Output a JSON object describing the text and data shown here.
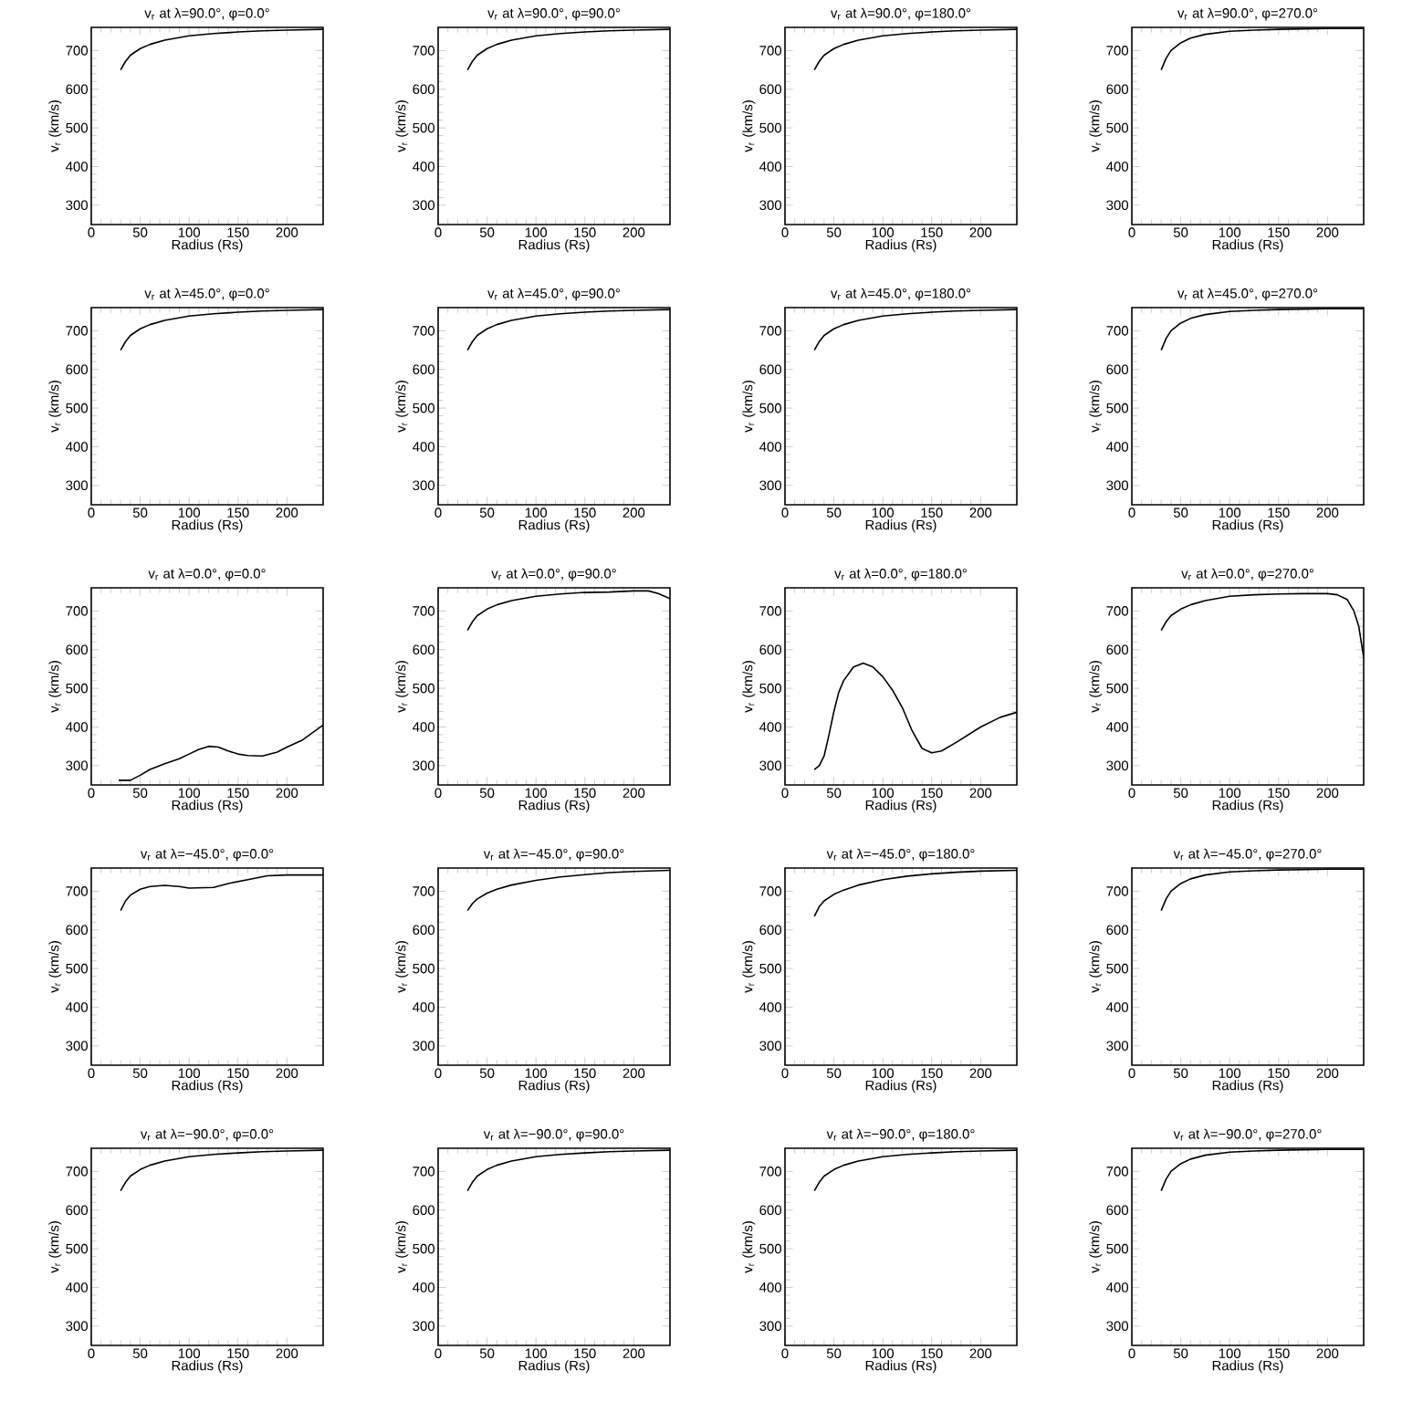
{
  "chart_data": [
    {
      "type": "line",
      "title": "v$_{r}$ at λ=90.0°, φ=0.0°",
      "xlabel": "Radius (Rs)",
      "ylabel": "v$_{r}$ (km/s)",
      "xlim": [
        0,
        237
      ],
      "ylim": [
        250,
        760
      ],
      "xticks": [
        0,
        50,
        100,
        150,
        200
      ],
      "yticks": [
        300,
        400,
        500,
        600,
        700
      ],
      "color": "#000000",
      "x": [
        30,
        35,
        40,
        50,
        60,
        75,
        100,
        125,
        150,
        175,
        200,
        237
      ],
      "values": [
        650,
        672,
        688,
        705,
        716,
        727,
        738,
        744,
        748,
        751,
        753,
        755
      ]
    },
    {
      "type": "line",
      "title": "v$_{r}$ at λ=90.0°, φ=90.0°",
      "xlabel": "Radius (Rs)",
      "ylabel": "v$_{r}$ (km/s)",
      "xlim": [
        0,
        237
      ],
      "ylim": [
        250,
        760
      ],
      "xticks": [
        0,
        50,
        100,
        150,
        200
      ],
      "yticks": [
        300,
        400,
        500,
        600,
        700
      ],
      "color": "#000000",
      "x": [
        30,
        35,
        40,
        50,
        60,
        75,
        100,
        125,
        150,
        175,
        200,
        237
      ],
      "values": [
        650,
        672,
        688,
        705,
        716,
        727,
        738,
        744,
        748,
        751,
        753,
        755
      ]
    },
    {
      "type": "line",
      "title": "v$_{r}$ at λ=90.0°, φ=180.0°",
      "xlabel": "Radius (Rs)",
      "ylabel": "v$_{r}$ (km/s)",
      "xlim": [
        0,
        237
      ],
      "ylim": [
        250,
        760
      ],
      "xticks": [
        0,
        50,
        100,
        150,
        200
      ],
      "yticks": [
        300,
        400,
        500,
        600,
        700
      ],
      "color": "#000000",
      "x": [
        30,
        35,
        40,
        50,
        60,
        75,
        100,
        125,
        150,
        175,
        200,
        237
      ],
      "values": [
        650,
        672,
        688,
        705,
        716,
        727,
        738,
        744,
        748,
        751,
        753,
        755
      ]
    },
    {
      "type": "line",
      "title": "v$_{r}$ at λ=90.0°, φ=270.0°",
      "xlabel": "Radius (Rs)",
      "ylabel": "v$_{r}$ (km/s)",
      "xlim": [
        0,
        237
      ],
      "ylim": [
        250,
        760
      ],
      "xticks": [
        0,
        50,
        100,
        150,
        200
      ],
      "yticks": [
        300,
        400,
        500,
        600,
        700
      ],
      "color": "#000000",
      "x": [
        30,
        35,
        40,
        50,
        60,
        75,
        100,
        125,
        150,
        175,
        200,
        237
      ],
      "values": [
        650,
        680,
        700,
        720,
        732,
        742,
        750,
        753,
        755,
        756,
        757,
        757
      ]
    },
    {
      "type": "line",
      "title": "v$_{r}$ at λ=45.0°, φ=0.0°",
      "xlabel": "Radius (Rs)",
      "ylabel": "v$_{r}$ (km/s)",
      "xlim": [
        0,
        237
      ],
      "ylim": [
        250,
        760
      ],
      "xticks": [
        0,
        50,
        100,
        150,
        200
      ],
      "yticks": [
        300,
        400,
        500,
        600,
        700
      ],
      "color": "#000000",
      "x": [
        30,
        35,
        40,
        50,
        60,
        75,
        100,
        125,
        150,
        175,
        200,
        237
      ],
      "values": [
        650,
        672,
        688,
        705,
        716,
        727,
        738,
        744,
        748,
        751,
        753,
        755
      ]
    },
    {
      "type": "line",
      "title": "v$_{r}$ at λ=45.0°, φ=90.0°",
      "xlabel": "Radius (Rs)",
      "ylabel": "v$_{r}$ (km/s)",
      "xlim": [
        0,
        237
      ],
      "ylim": [
        250,
        760
      ],
      "xticks": [
        0,
        50,
        100,
        150,
        200
      ],
      "yticks": [
        300,
        400,
        500,
        600,
        700
      ],
      "color": "#000000",
      "x": [
        30,
        35,
        40,
        50,
        60,
        75,
        100,
        125,
        150,
        175,
        200,
        237
      ],
      "values": [
        650,
        672,
        688,
        705,
        716,
        727,
        738,
        744,
        748,
        751,
        753,
        755
      ]
    },
    {
      "type": "line",
      "title": "v$_{r}$ at λ=45.0°, φ=180.0°",
      "xlabel": "Radius (Rs)",
      "ylabel": "v$_{r}$ (km/s)",
      "xlim": [
        0,
        237
      ],
      "ylim": [
        250,
        760
      ],
      "xticks": [
        0,
        50,
        100,
        150,
        200
      ],
      "yticks": [
        300,
        400,
        500,
        600,
        700
      ],
      "color": "#000000",
      "x": [
        30,
        35,
        40,
        50,
        60,
        75,
        100,
        125,
        150,
        175,
        200,
        237
      ],
      "values": [
        650,
        672,
        688,
        705,
        716,
        727,
        738,
        744,
        748,
        751,
        753,
        755
      ]
    },
    {
      "type": "line",
      "title": "v$_{r}$ at λ=45.0°, φ=270.0°",
      "xlabel": "Radius (Rs)",
      "ylabel": "v$_{r}$ (km/s)",
      "xlim": [
        0,
        237
      ],
      "ylim": [
        250,
        760
      ],
      "xticks": [
        0,
        50,
        100,
        150,
        200
      ],
      "yticks": [
        300,
        400,
        500,
        600,
        700
      ],
      "color": "#000000",
      "x": [
        30,
        35,
        40,
        50,
        60,
        75,
        100,
        125,
        150,
        175,
        200,
        237
      ],
      "values": [
        650,
        680,
        700,
        720,
        732,
        742,
        750,
        753,
        755,
        756,
        757,
        757
      ]
    },
    {
      "type": "line",
      "title": "v$_{r}$ at λ=0.0°, φ=0.0°",
      "xlabel": "Radius (Rs)",
      "ylabel": "v$_{r}$ (km/s)",
      "xlim": [
        0,
        237
      ],
      "ylim": [
        250,
        760
      ],
      "xticks": [
        0,
        50,
        100,
        150,
        200
      ],
      "yticks": [
        300,
        400,
        500,
        600,
        700
      ],
      "color": "#000000",
      "x": [
        28,
        40,
        50,
        60,
        75,
        90,
        100,
        110,
        120,
        130,
        140,
        150,
        160,
        175,
        190,
        200,
        215,
        237
      ],
      "values": [
        262,
        262,
        275,
        290,
        305,
        318,
        330,
        342,
        350,
        348,
        338,
        330,
        326,
        325,
        335,
        348,
        365,
        405
      ]
    },
    {
      "type": "line",
      "title": "v$_{r}$ at λ=0.0°, φ=90.0°",
      "xlabel": "Radius (Rs)",
      "ylabel": "v$_{r}$ (km/s)",
      "xlim": [
        0,
        237
      ],
      "ylim": [
        250,
        760
      ],
      "xticks": [
        0,
        50,
        100,
        150,
        200
      ],
      "yticks": [
        300,
        400,
        500,
        600,
        700
      ],
      "color": "#000000",
      "x": [
        30,
        35,
        40,
        50,
        60,
        75,
        100,
        125,
        150,
        175,
        200,
        215,
        225,
        237
      ],
      "values": [
        650,
        672,
        688,
        705,
        716,
        727,
        738,
        744,
        748,
        749,
        752,
        752,
        745,
        732
      ]
    },
    {
      "type": "line",
      "title": "v$_{r}$ at λ=0.0°, φ=180.0°",
      "xlabel": "Radius (Rs)",
      "ylabel": "v$_{r}$ (km/s)",
      "xlim": [
        0,
        237
      ],
      "ylim": [
        250,
        760
      ],
      "xticks": [
        0,
        50,
        100,
        150,
        200
      ],
      "yticks": [
        300,
        400,
        500,
        600,
        700
      ],
      "color": "#000000",
      "x": [
        30,
        35,
        40,
        45,
        50,
        55,
        60,
        70,
        80,
        90,
        100,
        110,
        120,
        130,
        140,
        150,
        160,
        175,
        200,
        220,
        237
      ],
      "values": [
        290,
        300,
        325,
        380,
        440,
        490,
        520,
        555,
        565,
        555,
        530,
        495,
        450,
        390,
        345,
        333,
        338,
        360,
        400,
        425,
        438
      ]
    },
    {
      "type": "line",
      "title": "v$_{r}$ at λ=0.0°, φ=270.0°",
      "xlabel": "Radius (Rs)",
      "ylabel": "v$_{r}$ (km/s)",
      "xlim": [
        0,
        237
      ],
      "ylim": [
        250,
        760
      ],
      "xticks": [
        0,
        50,
        100,
        150,
        200
      ],
      "yticks": [
        300,
        400,
        500,
        600,
        700
      ],
      "color": "#000000",
      "x": [
        30,
        35,
        40,
        50,
        60,
        75,
        100,
        125,
        150,
        175,
        200,
        210,
        220,
        227,
        232,
        237
      ],
      "values": [
        650,
        672,
        688,
        705,
        716,
        727,
        738,
        742,
        744,
        745,
        745,
        742,
        730,
        700,
        660,
        580
      ]
    },
    {
      "type": "line",
      "title": "v$_{r}$ at λ=−45.0°, φ=0.0°",
      "xlabel": "Radius (Rs)",
      "ylabel": "v$_{r}$ (km/s)",
      "xlim": [
        0,
        237
      ],
      "ylim": [
        250,
        760
      ],
      "xticks": [
        0,
        50,
        100,
        150,
        200
      ],
      "yticks": [
        300,
        400,
        500,
        600,
        700
      ],
      "color": "#000000",
      "x": [
        30,
        35,
        40,
        50,
        60,
        75,
        90,
        100,
        125,
        140,
        160,
        180,
        200,
        237
      ],
      "values": [
        650,
        675,
        690,
        705,
        712,
        715,
        712,
        708,
        710,
        720,
        730,
        740,
        742,
        742
      ]
    },
    {
      "type": "line",
      "title": "v$_{r}$ at λ=−45.0°, φ=90.0°",
      "xlabel": "Radius (Rs)",
      "ylabel": "v$_{r}$ (km/s)",
      "xlim": [
        0,
        237
      ],
      "ylim": [
        250,
        760
      ],
      "xticks": [
        0,
        50,
        100,
        150,
        200
      ],
      "yticks": [
        300,
        400,
        500,
        600,
        700
      ],
      "color": "#000000",
      "x": [
        30,
        35,
        40,
        50,
        60,
        75,
        100,
        125,
        150,
        175,
        200,
        237
      ],
      "values": [
        650,
        668,
        680,
        695,
        705,
        716,
        728,
        737,
        743,
        748,
        751,
        754
      ]
    },
    {
      "type": "line",
      "title": "v$_{r}$ at λ=−45.0°, φ=180.0°",
      "xlabel": "Radius (Rs)",
      "ylabel": "v$_{r}$ (km/s)",
      "xlim": [
        0,
        237
      ],
      "ylim": [
        250,
        760
      ],
      "xticks": [
        0,
        50,
        100,
        150,
        200
      ],
      "yticks": [
        300,
        400,
        500,
        600,
        700
      ],
      "color": "#000000",
      "x": [
        30,
        35,
        40,
        50,
        60,
        75,
        100,
        125,
        150,
        175,
        200,
        237
      ],
      "values": [
        635,
        660,
        675,
        692,
        703,
        716,
        730,
        739,
        745,
        749,
        752,
        754
      ]
    },
    {
      "type": "line",
      "title": "v$_{r}$ at λ=−45.0°, φ=270.0°",
      "xlabel": "Radius (Rs)",
      "ylabel": "v$_{r}$ (km/s)",
      "xlim": [
        0,
        237
      ],
      "ylim": [
        250,
        760
      ],
      "xticks": [
        0,
        50,
        100,
        150,
        200
      ],
      "yticks": [
        300,
        400,
        500,
        600,
        700
      ],
      "color": "#000000",
      "x": [
        30,
        35,
        40,
        50,
        60,
        75,
        100,
        125,
        150,
        175,
        200,
        237
      ],
      "values": [
        650,
        680,
        700,
        720,
        732,
        742,
        750,
        753,
        755,
        756,
        757,
        757
      ]
    },
    {
      "type": "line",
      "title": "v$_{r}$ at λ=−90.0°, φ=0.0°",
      "xlabel": "Radius (Rs)",
      "ylabel": "v$_{r}$ (km/s)",
      "xlim": [
        0,
        237
      ],
      "ylim": [
        250,
        760
      ],
      "xticks": [
        0,
        50,
        100,
        150,
        200
      ],
      "yticks": [
        300,
        400,
        500,
        600,
        700
      ],
      "color": "#000000",
      "x": [
        30,
        35,
        40,
        50,
        60,
        75,
        100,
        125,
        150,
        175,
        200,
        237
      ],
      "values": [
        650,
        672,
        688,
        705,
        716,
        727,
        738,
        744,
        748,
        751,
        753,
        755
      ]
    },
    {
      "type": "line",
      "title": "v$_{r}$ at λ=−90.0°, φ=90.0°",
      "xlabel": "Radius (Rs)",
      "ylabel": "v$_{r}$ (km/s)",
      "xlim": [
        0,
        237
      ],
      "ylim": [
        250,
        760
      ],
      "xticks": [
        0,
        50,
        100,
        150,
        200
      ],
      "yticks": [
        300,
        400,
        500,
        600,
        700
      ],
      "color": "#000000",
      "x": [
        30,
        35,
        40,
        50,
        60,
        75,
        100,
        125,
        150,
        175,
        200,
        237
      ],
      "values": [
        650,
        672,
        688,
        705,
        716,
        727,
        738,
        744,
        748,
        751,
        753,
        755
      ]
    },
    {
      "type": "line",
      "title": "v$_{r}$ at λ=−90.0°, φ=180.0°",
      "xlabel": "Radius (Rs)",
      "ylabel": "v$_{r}$ (km/s)",
      "xlim": [
        0,
        237
      ],
      "ylim": [
        250,
        760
      ],
      "xticks": [
        0,
        50,
        100,
        150,
        200
      ],
      "yticks": [
        300,
        400,
        500,
        600,
        700
      ],
      "color": "#000000",
      "x": [
        30,
        35,
        40,
        50,
        60,
        75,
        100,
        125,
        150,
        175,
        200,
        237
      ],
      "values": [
        650,
        672,
        688,
        705,
        716,
        727,
        738,
        744,
        748,
        751,
        753,
        755
      ]
    },
    {
      "type": "line",
      "title": "v$_{r}$ at λ=−90.0°, φ=270.0°",
      "xlabel": "Radius (Rs)",
      "ylabel": "v$_{r}$ (km/s)",
      "xlim": [
        0,
        237
      ],
      "ylim": [
        250,
        760
      ],
      "xticks": [
        0,
        50,
        100,
        150,
        200
      ],
      "yticks": [
        300,
        400,
        500,
        600,
        700
      ],
      "color": "#000000",
      "x": [
        30,
        35,
        40,
        50,
        60,
        75,
        100,
        125,
        150,
        175,
        200,
        237
      ],
      "values": [
        650,
        680,
        700,
        720,
        732,
        742,
        750,
        753,
        755,
        756,
        757,
        757
      ]
    }
  ]
}
